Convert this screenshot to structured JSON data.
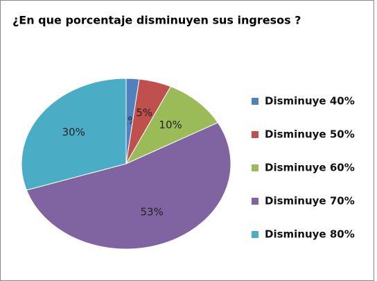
{
  "chart_data": {
    "type": "pie",
    "title": "¿En que porcentaje disminuyen sus ingresos ?",
    "categories": [
      "Disminuye 40%",
      "Disminuye 50%",
      "Disminuye 60%",
      "Disminuye 70%",
      "Disminuye 80%"
    ],
    "values": [
      2,
      5,
      10,
      53,
      30
    ],
    "value_labels": [
      "2%",
      "5%",
      "10%",
      "53%",
      "30%"
    ],
    "colors": [
      "#4f81bd",
      "#c0504d",
      "#9bbb59",
      "#8064a2",
      "#4bacc6"
    ],
    "legend": "right"
  }
}
